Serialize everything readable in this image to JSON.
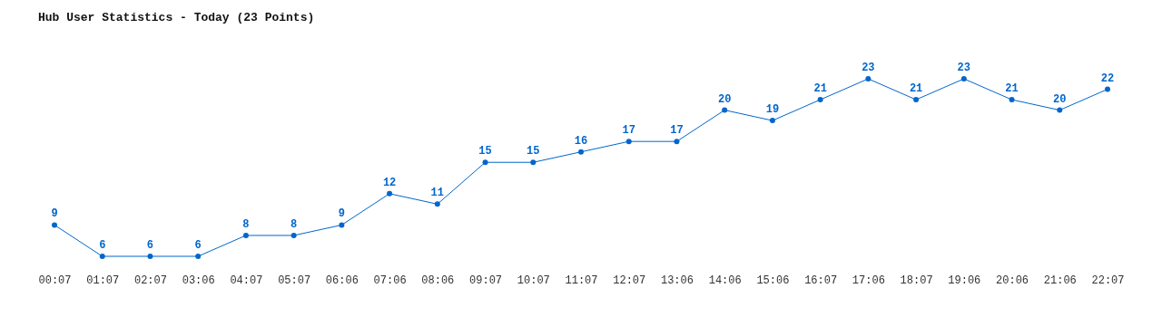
{
  "chart_data": {
    "type": "line",
    "title": "Hub User Statistics - Today (23 Points)",
    "categories": [
      "00:07",
      "01:07",
      "02:07",
      "03:06",
      "04:07",
      "05:07",
      "06:06",
      "07:06",
      "08:06",
      "09:07",
      "10:07",
      "11:07",
      "12:07",
      "13:06",
      "14:06",
      "15:06",
      "16:07",
      "17:06",
      "18:07",
      "19:06",
      "20:06",
      "21:06",
      "22:07"
    ],
    "series": [
      {
        "color": "#0066cc",
        "values": [
          9,
          6,
          6,
          6,
          8,
          8,
          9,
          12,
          11,
          15,
          15,
          16,
          17,
          17,
          20,
          19,
          21,
          23,
          21,
          23,
          21,
          20,
          22
        ]
      }
    ],
    "data_labels": true,
    "marker": "circle",
    "grid": false,
    "tick_labels": "x"
  }
}
